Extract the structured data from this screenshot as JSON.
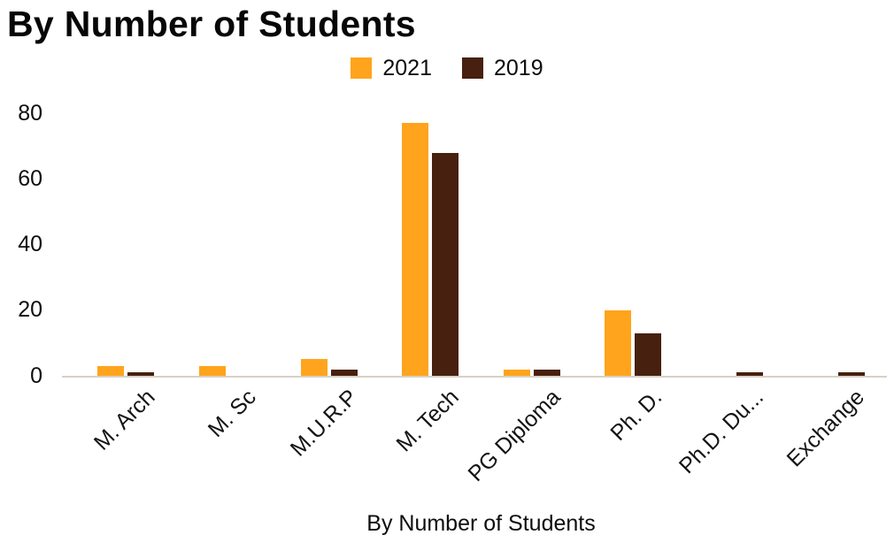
{
  "chart_data": {
    "type": "bar",
    "title": "By Number of Students",
    "xlabel": "By Number of Students",
    "ylabel": "",
    "categories": [
      "M. Arch",
      "M. Sc",
      "M.U.R.P",
      "M. Tech",
      "PG Diploma",
      "Ph. D.",
      "Ph.D. Du...",
      "Exchange"
    ],
    "series": [
      {
        "name": "2021",
        "color": "#FFA41C",
        "values": [
          3,
          3,
          5,
          77,
          2,
          20,
          0,
          0
        ]
      },
      {
        "name": "2019",
        "color": "#47200F",
        "values": [
          1,
          0,
          2,
          68,
          2,
          13,
          1,
          1
        ]
      }
    ],
    "yticks": [
      80,
      60,
      40,
      20,
      0
    ],
    "ylim": [
      0,
      80
    ],
    "grid": false,
    "legend_position": "top",
    "colors": {
      "background": "#ffffff",
      "axis_line": "#d8d1c7",
      "text": "#0d0d0d"
    }
  }
}
